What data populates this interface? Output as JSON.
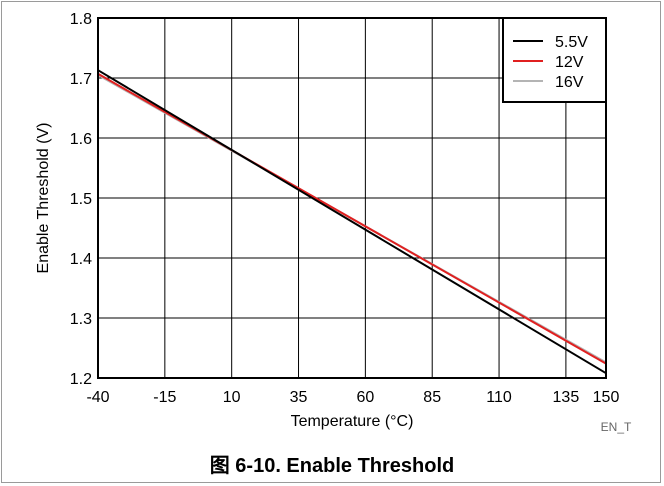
{
  "caption": "图 6-10. Enable Threshold",
  "chart_data": {
    "type": "line",
    "xlabel": "Temperature (°C)",
    "ylabel": "Enable Threshold (V)",
    "xlim": [
      -40,
      150
    ],
    "ylim": [
      1.2,
      1.8
    ],
    "x_ticks": [
      -40,
      -15,
      10,
      35,
      60,
      85,
      110,
      135,
      150
    ],
    "y_ticks": [
      1.2,
      1.3,
      1.4,
      1.5,
      1.6,
      1.7,
      1.8
    ],
    "y_tick_labels": [
      "1.2",
      "1.3",
      "1.4",
      "1.5",
      "1.6",
      "1.7",
      "1.8"
    ],
    "grid": true,
    "legend_position": "top-right",
    "corner_code": "EN_T",
    "series": [
      {
        "name": "5.5V",
        "color": "#000000",
        "x": [
          -40,
          150
        ],
        "y": [
          1.713,
          1.208
        ]
      },
      {
        "name": "12V",
        "color": "#e02020",
        "x": [
          -40,
          150
        ],
        "y": [
          1.707,
          1.224
        ]
      },
      {
        "name": "16V",
        "color": "#b4b4b4",
        "x": [
          -40,
          150
        ],
        "y": [
          1.705,
          1.226
        ]
      }
    ]
  }
}
